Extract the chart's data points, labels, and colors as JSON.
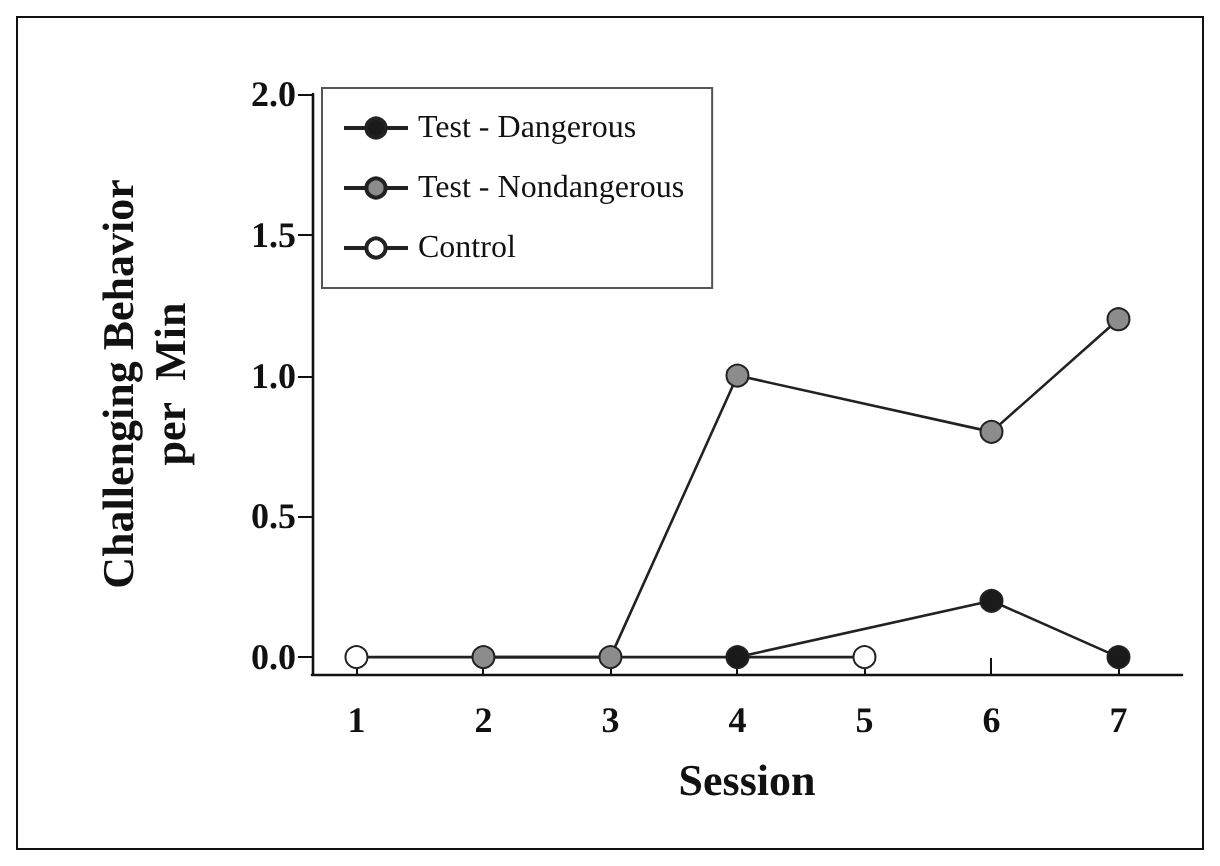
{
  "chart_data": {
    "type": "line",
    "xlabel": "Session",
    "ylabel": "Challenging Behavior\nper  Min",
    "xlim": [
      0.65,
      7.5
    ],
    "xticks": [
      1,
      2,
      3,
      4,
      5,
      6,
      7
    ],
    "ylim": [
      -0.06,
      2.0
    ],
    "yticks": [
      {
        "value": 0,
        "label": "0.0"
      },
      {
        "value": 0.5,
        "label": "0.5"
      },
      {
        "value": 1,
        "label": "1.0"
      },
      {
        "value": 1.5,
        "label": "1.5"
      },
      {
        "value": 2,
        "label": "2.0"
      }
    ],
    "series": [
      {
        "name": "Test - Dangerous",
        "color": "#1a1a1a",
        "x": [
          4,
          6,
          7
        ],
        "values": [
          0,
          0.2,
          0
        ]
      },
      {
        "name": "Test - Nondangerous",
        "color": "#8c8c8c",
        "x": [
          2,
          3,
          4,
          6,
          7
        ],
        "values": [
          0,
          0,
          1.0,
          0.8,
          1.2
        ]
      },
      {
        "name": "Control",
        "color": "#ffffff",
        "x": [
          1,
          5
        ],
        "values": [
          0,
          0
        ]
      }
    ],
    "legend": "top left",
    "grid": false,
    "marker": "circle",
    "line_style": "solid"
  }
}
